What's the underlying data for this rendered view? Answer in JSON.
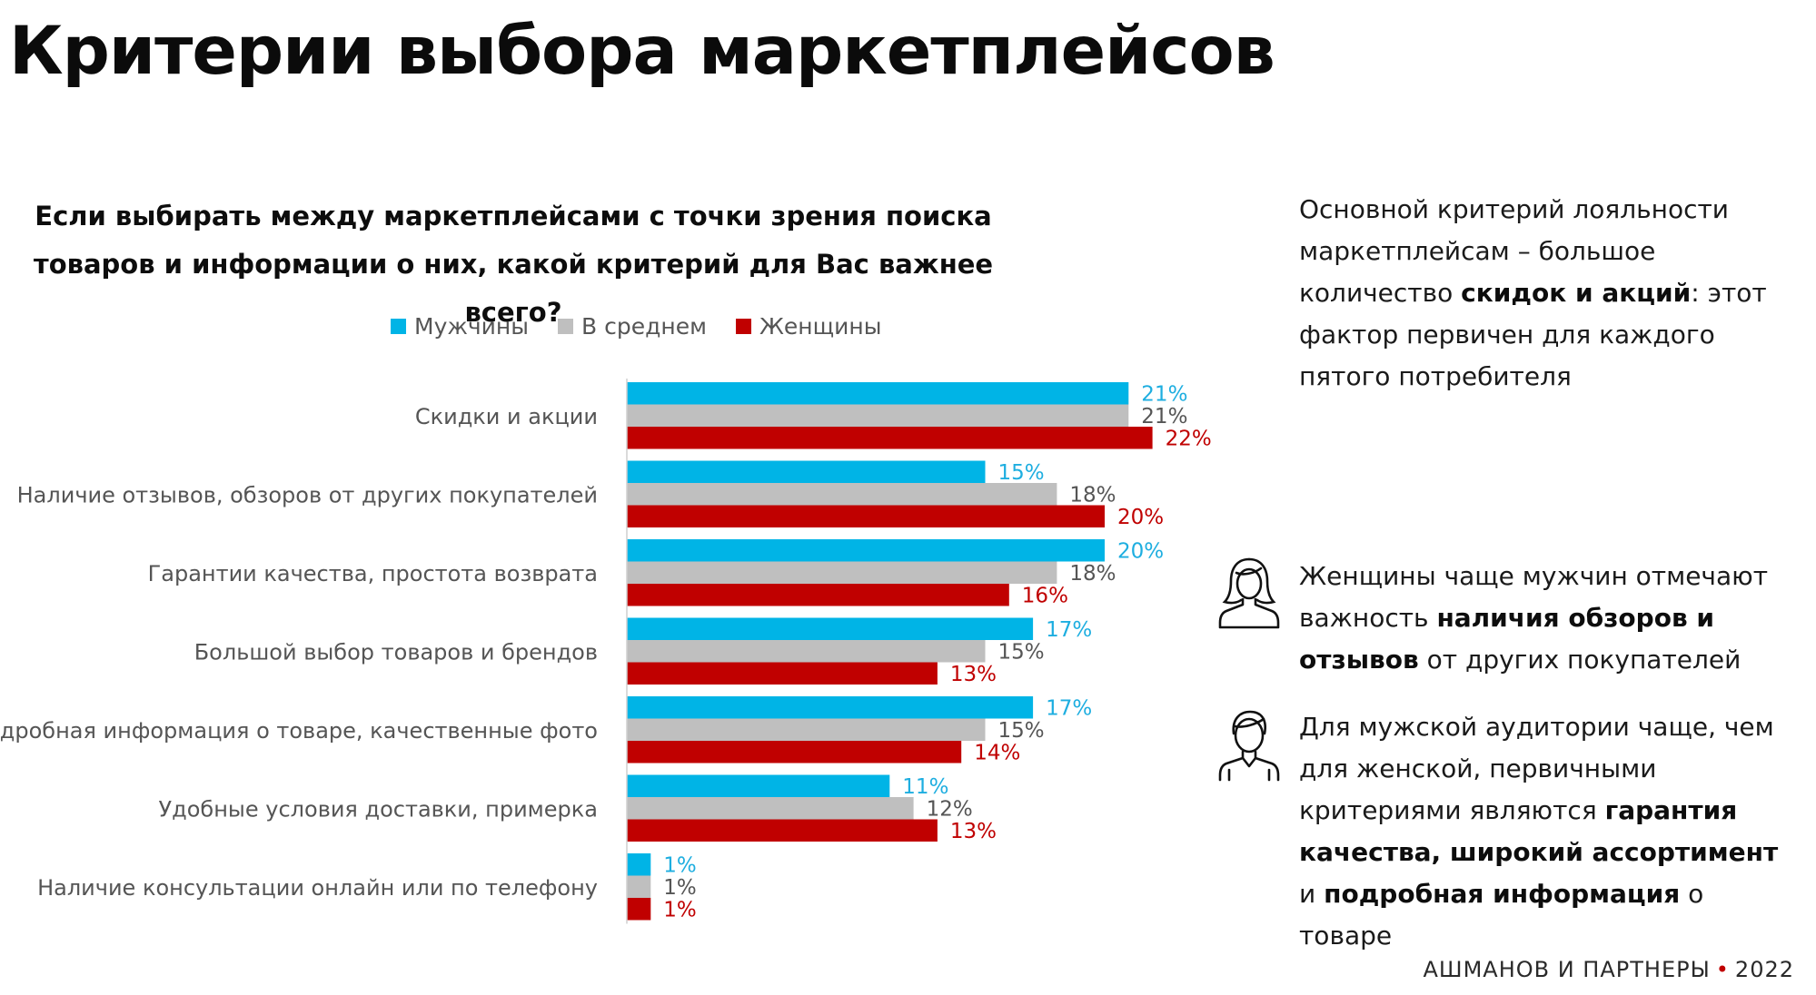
{
  "title": "Критерии выбора маркетплейсов",
  "chart_data": {
    "type": "bar",
    "orientation": "horizontal",
    "title_lines": [
      "Если выбирать между маркетплейсами с точки зрения поиска",
      "товаров и информации о них, какой критерий для Вас важнее всего?"
    ],
    "categories": [
      "Скидки и акции",
      "Наличие отзывов, обзоров от других покупателей",
      "Гарантии качества, простота возврата",
      "Большой выбор товаров и брендов",
      "Подробная информация о товаре, качественные фото",
      "Удобные условия доставки, примерка",
      "Наличие консультации онлайн или по телефону"
    ],
    "series": [
      {
        "name": "Мужчины",
        "color": "#00b4e6",
        "values": [
          21,
          15,
          20,
          17,
          17,
          11,
          1
        ]
      },
      {
        "name": "В среднем",
        "color": "#bfbfbf",
        "values": [
          21,
          18,
          18,
          15,
          15,
          12,
          1
        ]
      },
      {
        "name": "Женщины",
        "color": "#c00000",
        "values": [
          22,
          20,
          16,
          13,
          14,
          13,
          1
        ]
      }
    ],
    "value_suffix": "%",
    "legend_position": "top",
    "grid": false
  },
  "sidebar": {
    "note1": [
      {
        "t": "Основной критерий лояльности маркетплейсам – большое количество "
      },
      {
        "t": "скидок и акций",
        "b": true
      },
      {
        "t": ": этот фактор первичен для каждого пятого потребителя"
      }
    ],
    "note2": [
      {
        "t": "Женщины чаще мужчин отмечают важность "
      },
      {
        "t": "наличия обзоров и отзывов",
        "b": true
      },
      {
        "t": " от других покупателей"
      }
    ],
    "note3": [
      {
        "t": "Для мужской аудитории чаще, чем для женской, первичными критериями являются "
      },
      {
        "t": "гарантия качества, широкий ассортимент",
        "b": true
      },
      {
        "t": " и "
      },
      {
        "t": "подробная информация",
        "b": true
      },
      {
        "t": " о товаре"
      }
    ],
    "woman_icon": "woman-icon",
    "man_icon": "man-icon"
  },
  "footer": {
    "brand": "АШМАНОВ И ПАРТНЕРЫ",
    "year": "2022"
  }
}
